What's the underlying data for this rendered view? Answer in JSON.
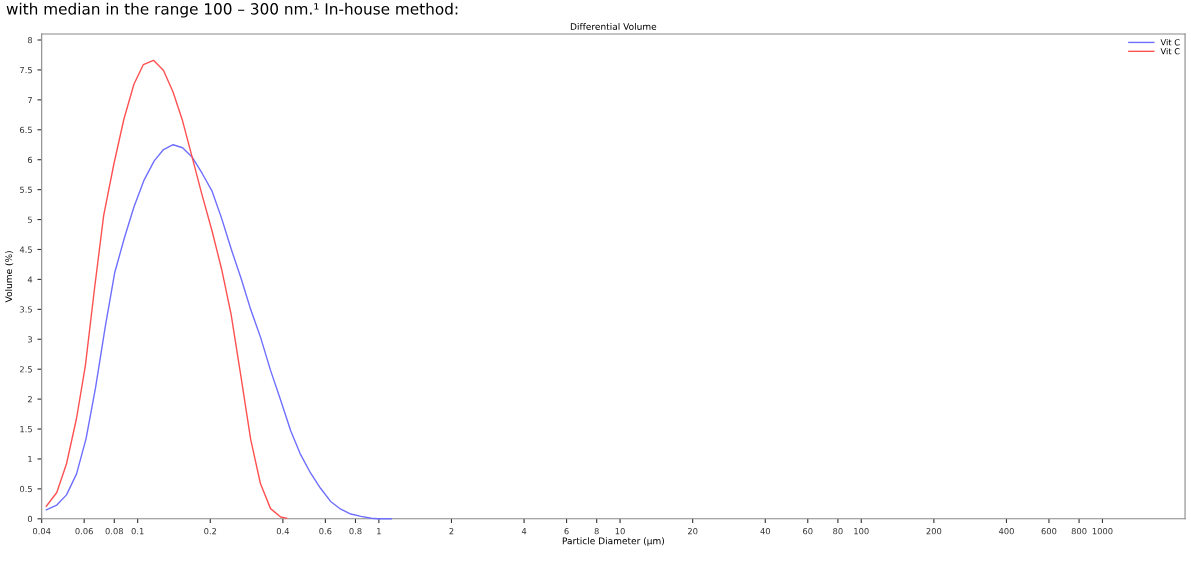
{
  "chart_data": {
    "type": "line",
    "title": "Differential Volume",
    "xlabel": "Particle Diameter (µm)",
    "ylabel": "Volume (%)",
    "annotations": [
      "with median in the range 100 – 300 nm.¹ In-house method:"
    ],
    "log": "x",
    "xlim": [
      0.04,
      2200
    ],
    "ylim": [
      0,
      8.1
    ],
    "xticks": [
      0.04,
      0.06,
      0.08,
      0.1,
      0.2,
      0.4,
      0.6,
      0.8,
      1,
      2,
      4,
      6,
      8,
      10,
      20,
      40,
      60,
      80,
      100,
      200,
      400,
      600,
      800,
      1000
    ],
    "yticks": [
      0,
      0.5,
      1,
      1.5,
      2,
      2.5,
      3,
      3.5,
      4,
      4.5,
      5,
      5.5,
      6,
      6.5,
      7,
      7.5,
      8
    ],
    "grid": false,
    "legend": "top right",
    "series": [
      {
        "name": "Vit C",
        "color": "#6e6eff",
        "x": [
          0.0418,
          0.0462,
          0.0507,
          0.0558,
          0.0611,
          0.0669,
          0.0734,
          0.0804,
          0.0882,
          0.0965,
          0.1063,
          0.1171,
          0.128,
          0.1402,
          0.1535,
          0.1685,
          0.1852,
          0.2037,
          0.2229,
          0.245,
          0.2687,
          0.294,
          0.3228,
          0.3556,
          0.3917,
          0.431,
          0.4715,
          0.52,
          0.573,
          0.631,
          0.695,
          0.765,
          0.843,
          0.929,
          0.99,
          1.127
        ],
        "values": [
          0.15,
          0.23,
          0.4,
          0.75,
          1.34,
          2.19,
          3.21,
          4.12,
          4.7,
          5.21,
          5.66,
          5.98,
          6.17,
          6.25,
          6.2,
          6.04,
          5.77,
          5.47,
          5.02,
          4.49,
          4.01,
          3.5,
          3.04,
          2.48,
          1.98,
          1.47,
          1.09,
          0.77,
          0.51,
          0.29,
          0.16,
          0.08,
          0.04,
          0.01,
          0,
          0
        ]
      },
      {
        "name": "Vit C",
        "color": "#ff5050",
        "x": [
          0.0418,
          0.0462,
          0.0507,
          0.0558,
          0.0607,
          0.0662,
          0.0723,
          0.0796,
          0.0877,
          0.0965,
          0.1056,
          0.1163,
          0.128,
          0.1402,
          0.1535,
          0.1685,
          0.1838,
          0.2037,
          0.2229,
          0.2439,
          0.2687,
          0.294,
          0.3228,
          0.3556,
          0.3917,
          0.415
        ],
        "values": [
          0.21,
          0.44,
          0.92,
          1.68,
          2.56,
          3.84,
          5.07,
          5.92,
          6.68,
          7.26,
          7.59,
          7.66,
          7.49,
          7.13,
          6.65,
          6.03,
          5.45,
          4.8,
          4.17,
          3.42,
          2.35,
          1.33,
          0.59,
          0.17,
          0.03,
          0.01
        ]
      }
    ]
  }
}
